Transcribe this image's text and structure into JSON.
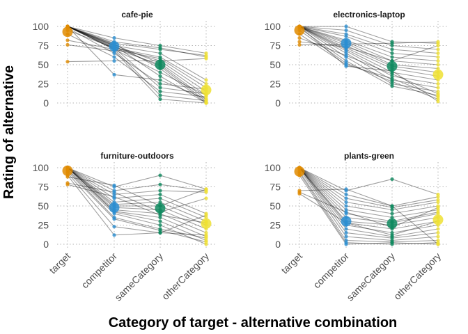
{
  "chart_data": {
    "type": "scatter",
    "subtype": "faceted-slopegraph",
    "xlabel": "Category of target - alternative combination",
    "ylabel": "Rating of alternative",
    "categories": [
      "target",
      "competitor",
      "sameCategory",
      "otherCategory"
    ],
    "ylim": [
      0,
      100
    ],
    "yticks": [
      0,
      25,
      50,
      75,
      100
    ],
    "colors": {
      "target": "#E08B00",
      "competitor": "#2C8ED1",
      "sameCategory": "#0F8A5F",
      "otherCategory": "#EFE033"
    },
    "panels": [
      {
        "title": "cafe-pie",
        "means": [
          93,
          74,
          50,
          17
        ],
        "participants": [
          [
            100,
            85,
            75,
            65
          ],
          [
            100,
            80,
            72,
            60
          ],
          [
            100,
            78,
            70,
            62
          ],
          [
            100,
            75,
            65,
            30
          ],
          [
            100,
            72,
            60,
            25
          ],
          [
            100,
            70,
            58,
            20
          ],
          [
            100,
            73,
            55,
            15
          ],
          [
            100,
            76,
            52,
            10
          ],
          [
            100,
            71,
            50,
            5
          ],
          [
            100,
            74,
            48,
            2
          ],
          [
            100,
            77,
            45,
            0
          ],
          [
            100,
            70,
            40,
            10
          ],
          [
            100,
            75,
            35,
            0
          ],
          [
            100,
            37,
            30,
            5
          ],
          [
            98,
            65,
            25,
            18
          ],
          [
            95,
            72,
            20,
            12
          ],
          [
            90,
            60,
            15,
            8
          ],
          [
            82,
            70,
            10,
            3
          ],
          [
            76,
            68,
            5,
            0
          ],
          [
            54,
            55,
            55,
            58
          ]
        ]
      },
      {
        "title": "electronics-laptop",
        "means": [
          95,
          78,
          48,
          37
        ],
        "participants": [
          [
            100,
            100,
            80,
            78
          ],
          [
            100,
            95,
            75,
            70
          ],
          [
            100,
            90,
            70,
            65
          ],
          [
            100,
            87,
            65,
            60
          ],
          [
            100,
            82,
            60,
            55
          ],
          [
            100,
            80,
            55,
            50
          ],
          [
            100,
            78,
            50,
            45
          ],
          [
            100,
            75,
            48,
            40
          ],
          [
            100,
            72,
            45,
            35
          ],
          [
            100,
            70,
            40,
            30
          ],
          [
            100,
            68,
            35,
            25
          ],
          [
            100,
            65,
            30,
            20
          ],
          [
            100,
            60,
            25,
            15
          ],
          [
            98,
            55,
            22,
            10
          ],
          [
            95,
            52,
            28,
            5
          ],
          [
            90,
            50,
            32,
            8
          ],
          [
            85,
            62,
            38,
            12
          ],
          [
            80,
            73,
            55,
            75
          ],
          [
            76,
            77,
            78,
            80
          ],
          [
            100,
            48,
            42,
            2
          ]
        ]
      },
      {
        "title": "furniture-outdoors",
        "means": [
          96,
          48,
          47,
          27
        ],
        "participants": [
          [
            100,
            75,
            90,
            72
          ],
          [
            100,
            70,
            78,
            70
          ],
          [
            100,
            65,
            70,
            68
          ],
          [
            100,
            60,
            65,
            40
          ],
          [
            100,
            55,
            60,
            35
          ],
          [
            100,
            52,
            55,
            30
          ],
          [
            100,
            50,
            50,
            25
          ],
          [
            100,
            48,
            45,
            20
          ],
          [
            100,
            45,
            40,
            15
          ],
          [
            100,
            43,
            35,
            10
          ],
          [
            100,
            42,
            30,
            5
          ],
          [
            98,
            40,
            25,
            0
          ],
          [
            97,
            35,
            20,
            8
          ],
          [
            95,
            33,
            18,
            3
          ],
          [
            93,
            23,
            15,
            12
          ],
          [
            90,
            12,
            15,
            38
          ],
          [
            88,
            77,
            50,
            72
          ],
          [
            80,
            68,
            42,
            60
          ],
          [
            78,
            62,
            38,
            28
          ]
        ]
      },
      {
        "title": "plants-green",
        "means": [
          95,
          30,
          27,
          32
        ],
        "participants": [
          [
            100,
            70,
            85,
            65
          ],
          [
            100,
            65,
            50,
            62
          ],
          [
            100,
            60,
            48,
            58
          ],
          [
            100,
            55,
            45,
            55
          ],
          [
            100,
            50,
            40,
            50
          ],
          [
            100,
            45,
            35,
            45
          ],
          [
            100,
            40,
            30,
            42
          ],
          [
            100,
            35,
            28,
            40
          ],
          [
            100,
            30,
            25,
            35
          ],
          [
            100,
            28,
            20,
            30
          ],
          [
            100,
            25,
            15,
            25
          ],
          [
            100,
            20,
            10,
            20
          ],
          [
            100,
            15,
            8,
            15
          ],
          [
            98,
            10,
            5,
            10
          ],
          [
            95,
            5,
            3,
            5
          ],
          [
            93,
            2,
            0,
            2
          ],
          [
            90,
            0,
            2,
            0
          ],
          [
            70,
            72,
            50,
            0
          ],
          [
            68,
            42,
            22,
            48
          ],
          [
            66,
            28,
            12,
            30
          ]
        ]
      }
    ]
  }
}
